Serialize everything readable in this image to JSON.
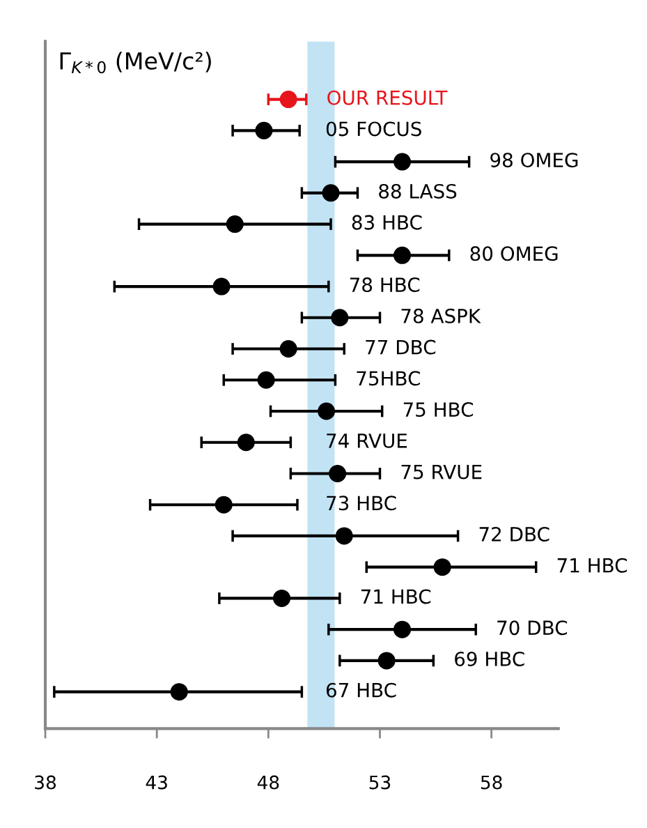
{
  "chart_data": {
    "type": "scatter",
    "title": "Γ$_{K*0}$ (MeV/c²)",
    "categories": [
      "OUR RESULT",
      "05 FOCUS",
      "98 OMEG",
      "88 LASS",
      "83 HBC",
      "80 OMEG",
      "78 HBC",
      "78 ASPK",
      "77 DBC",
      "75HBC",
      "75 HBC",
      "74 RVUE",
      "75 RVUE",
      "73 HBC",
      "72 DBC",
      "71 HBC",
      "71 HBC",
      "70 DBC",
      "69 HBC",
      "67 HBC"
    ],
    "orientation": "horizontal",
    "values": [
      48.9,
      47.8,
      54.0,
      50.8,
      46.5,
      54.0,
      45.9,
      51.2,
      48.9,
      47.9,
      50.6,
      47.0,
      51.1,
      46.0,
      51.4,
      55.8,
      48.6,
      54.0,
      53.3,
      44.0
    ],
    "errors": [
      [
        48.0,
        49.7
      ],
      [
        46.4,
        49.4
      ],
      [
        51.0,
        57.0
      ],
      [
        49.5,
        52.0
      ],
      [
        42.2,
        50.8
      ],
      [
        52.0,
        56.1
      ],
      [
        41.1,
        50.7
      ],
      [
        49.5,
        53.0
      ],
      [
        46.4,
        51.4
      ],
      [
        46.0,
        51.0
      ],
      [
        48.1,
        53.1
      ],
      [
        45.0,
        49.0
      ],
      [
        49.0,
        53.0
      ],
      [
        42.7,
        49.3
      ],
      [
        46.4,
        56.5
      ],
      [
        52.4,
        60.0
      ],
      [
        45.8,
        51.2
      ],
      [
        50.7,
        57.3
      ],
      [
        51.2,
        55.4
      ],
      [
        38.4,
        49.5
      ]
    ],
    "colors": [
      "#e8141b",
      "#000000",
      "#000000",
      "#000000",
      "#000000",
      "#000000",
      "#000000",
      "#000000",
      "#000000",
      "#000000",
      "#000000",
      "#000000",
      "#000000",
      "#000000",
      "#000000",
      "#000000",
      "#000000",
      "#000000",
      "#000000",
      "#000000"
    ],
    "marker": "circle",
    "xlim": [
      38,
      61
    ],
    "xticks": [
      38,
      43,
      48,
      53,
      58
    ],
    "bands": [
      {
        "axis": "x",
        "from": 49.75,
        "to": 50.97,
        "color": "#c2e3f4"
      }
    ],
    "tick_labels": "x",
    "grid": false,
    "legend": false
  }
}
